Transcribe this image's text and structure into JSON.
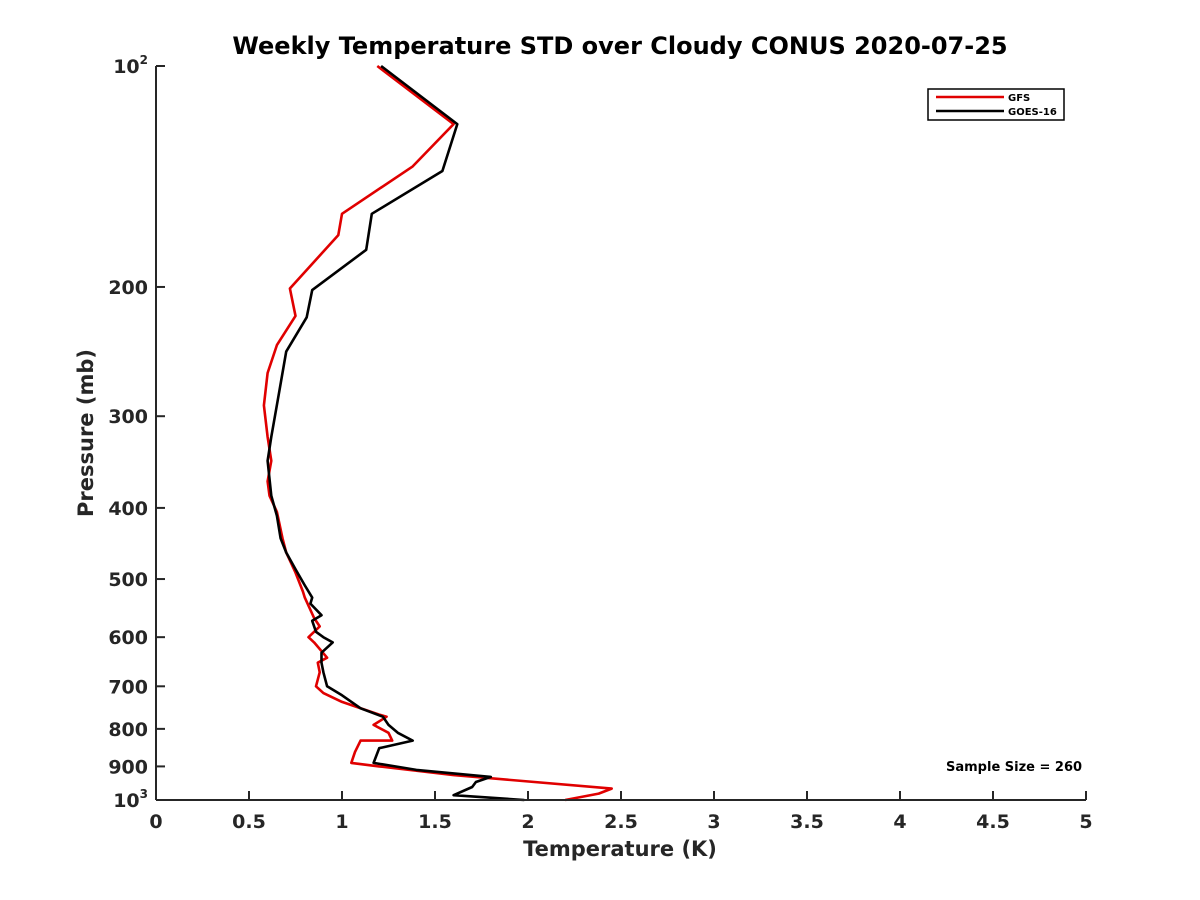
{
  "chart_data": {
    "type": "line",
    "title": "Weekly Temperature STD over Cloudy CONUS 2020-07-25",
    "xlabel": "Temperature (K)",
    "ylabel": "Pressure (mb)",
    "xlim": [
      0,
      5
    ],
    "ylim": [
      100,
      1000
    ],
    "y_scale": "log",
    "y_reversed": true,
    "grid": false,
    "legend_position": "top-right",
    "x_ticks": [
      0,
      0.5,
      1,
      1.5,
      2,
      2.5,
      3,
      3.5,
      4,
      4.5,
      5
    ],
    "x_tick_labels": [
      "0",
      "0.5",
      "1",
      "1.5",
      "2",
      "2.5",
      "3",
      "3.5",
      "4",
      "4.5",
      "5"
    ],
    "y_ticks": [
      {
        "value": 100,
        "base": "10",
        "exp": "2"
      },
      {
        "value": 200,
        "label": "200"
      },
      {
        "value": 300,
        "label": "300"
      },
      {
        "value": 400,
        "label": "400"
      },
      {
        "value": 500,
        "label": "500"
      },
      {
        "value": 600,
        "label": "600"
      },
      {
        "value": 700,
        "label": "700"
      },
      {
        "value": 800,
        "label": "800"
      },
      {
        "value": 900,
        "label": "900"
      },
      {
        "value": 1000,
        "base": "10",
        "exp": "3"
      }
    ],
    "annotation": "Sample Size = 260",
    "series": [
      {
        "name": "GFS",
        "color": "#e00000",
        "x": [
          1.19,
          1.6,
          1.38,
          1.0,
          0.98,
          0.72,
          0.75,
          0.65,
          0.6,
          0.58,
          0.6,
          0.62,
          0.6,
          0.61,
          0.65,
          0.68,
          0.7,
          0.75,
          0.79,
          0.8,
          0.85,
          0.88,
          0.85,
          0.82,
          0.85,
          0.92,
          0.87,
          0.88,
          0.86,
          0.9,
          1.0,
          1.2,
          1.24,
          1.17,
          1.25,
          1.27,
          1.1,
          1.07,
          1.05,
          1.2,
          1.6,
          2.45,
          2.38,
          2.2
        ],
        "y": [
          100,
          120,
          137,
          159,
          170,
          201,
          219,
          240,
          262,
          290,
          320,
          345,
          368,
          385,
          405,
          440,
          460,
          490,
          520,
          530,
          565,
          580,
          590,
          600,
          610,
          640,
          650,
          670,
          700,
          715,
          735,
          765,
          770,
          790,
          810,
          830,
          830,
          860,
          890,
          900,
          925,
          965,
          980,
          1000
        ]
      },
      {
        "name": "GOES-16",
        "color": "#000000",
        "x": [
          1.21,
          1.62,
          1.54,
          1.16,
          1.13,
          0.84,
          0.81,
          0.7,
          0.66,
          0.62,
          0.6,
          0.61,
          0.62,
          0.65,
          0.67,
          0.7,
          0.75,
          0.8,
          0.84,
          0.83,
          0.89,
          0.84,
          0.86,
          0.9,
          0.95,
          0.89,
          0.89,
          0.9,
          0.92,
          1.0,
          1.1,
          1.22,
          1.25,
          1.3,
          1.38,
          1.2,
          1.17,
          1.4,
          1.8,
          1.72,
          1.7,
          1.6,
          1.98
        ],
        "y": [
          100,
          120,
          139,
          159,
          178,
          202,
          220,
          245,
          280,
          320,
          345,
          365,
          385,
          410,
          440,
          460,
          485,
          510,
          530,
          540,
          560,
          570,
          590,
          600,
          610,
          630,
          650,
          670,
          700,
          720,
          750,
          770,
          790,
          810,
          830,
          850,
          890,
          910,
          930,
          945,
          960,
          985,
          1000
        ]
      }
    ]
  }
}
